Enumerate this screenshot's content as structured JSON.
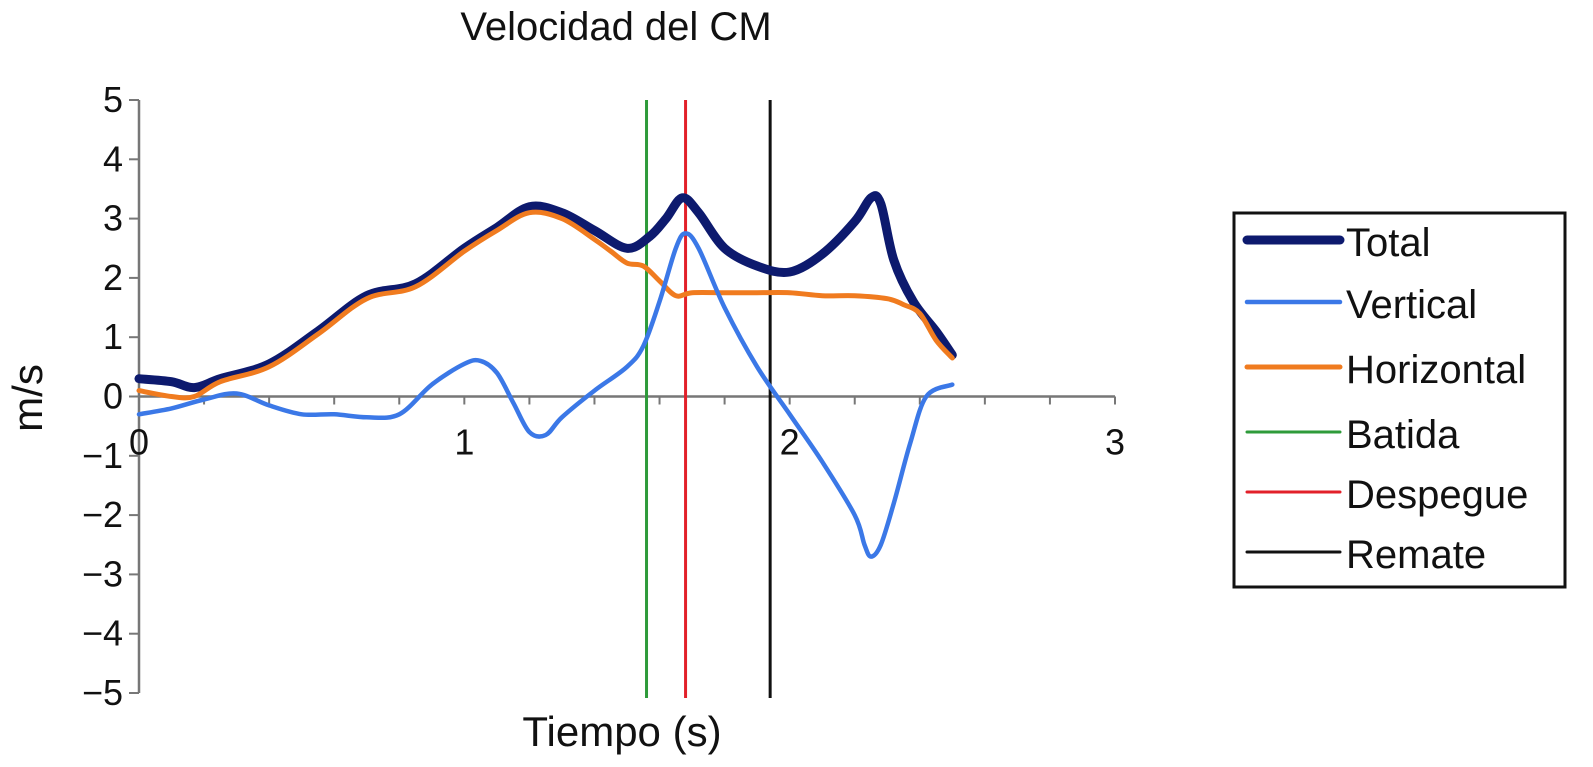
{
  "chart_data": {
    "type": "line",
    "title": "Velocidad del CM",
    "xlabel": "Tiempo (s)",
    "ylabel": "m/s",
    "xlim": [
      0,
      3
    ],
    "ylim": [
      -5,
      5
    ],
    "x_ticks": [
      0,
      1,
      2,
      3
    ],
    "x_tick_labels": [
      "0",
      "1",
      "2",
      "3"
    ],
    "y_ticks": [
      5,
      4,
      3,
      2,
      1,
      0,
      -1,
      -2,
      -3,
      -4,
      -5
    ],
    "y_tick_labels": [
      "5",
      "4",
      "3",
      "2",
      "1",
      "0",
      "−1",
      "−2",
      "−3",
      "−4",
      "−5"
    ],
    "grid": false,
    "legend_position": "right",
    "series": [
      {
        "name": "Total",
        "color": "#0d1a6e",
        "x": [
          0,
          0.1,
          0.17,
          0.25,
          0.4,
          0.55,
          0.7,
          0.85,
          1.0,
          1.1,
          1.2,
          1.3,
          1.4,
          1.5,
          1.57,
          1.62,
          1.67,
          1.72,
          1.8,
          1.9,
          2.0,
          2.1,
          2.2,
          2.25,
          2.28,
          2.32,
          2.38,
          2.45,
          2.5
        ],
        "y": [
          0.3,
          0.25,
          0.15,
          0.3,
          0.55,
          1.1,
          1.7,
          1.9,
          2.5,
          2.85,
          3.2,
          3.1,
          2.8,
          2.5,
          2.7,
          3.0,
          3.35,
          3.1,
          2.5,
          2.2,
          2.1,
          2.4,
          2.95,
          3.35,
          3.25,
          2.3,
          1.6,
          1.1,
          0.7
        ]
      },
      {
        "name": "Vertical",
        "color": "#3b78e7",
        "x": [
          0,
          0.1,
          0.2,
          0.3,
          0.4,
          0.5,
          0.6,
          0.7,
          0.8,
          0.9,
          1.0,
          1.05,
          1.1,
          1.15,
          1.2,
          1.25,
          1.3,
          1.4,
          1.5,
          1.55,
          1.6,
          1.65,
          1.68,
          1.72,
          1.8,
          1.9,
          2.0,
          2.1,
          2.2,
          2.23,
          2.25,
          2.28,
          2.32,
          2.37,
          2.42,
          2.5
        ],
        "y": [
          -0.3,
          -0.2,
          -0.05,
          0.05,
          -0.15,
          -0.3,
          -0.3,
          -0.35,
          -0.3,
          0.2,
          0.55,
          0.6,
          0.4,
          -0.1,
          -0.6,
          -0.65,
          -0.35,
          0.1,
          0.5,
          0.85,
          1.6,
          2.5,
          2.75,
          2.5,
          1.5,
          0.5,
          -0.3,
          -1.1,
          -2.0,
          -2.5,
          -2.7,
          -2.5,
          -1.8,
          -0.8,
          0.0,
          0.2
        ]
      },
      {
        "name": "Horizontal",
        "color": "#f07b1f",
        "x": [
          0,
          0.1,
          0.17,
          0.25,
          0.4,
          0.55,
          0.7,
          0.85,
          1.0,
          1.1,
          1.2,
          1.3,
          1.4,
          1.45,
          1.5,
          1.55,
          1.6,
          1.65,
          1.7,
          1.8,
          1.9,
          2.0,
          2.1,
          2.2,
          2.3,
          2.35,
          2.4,
          2.45,
          2.5
        ],
        "y": [
          0.1,
          0.0,
          0.0,
          0.25,
          0.5,
          1.05,
          1.65,
          1.85,
          2.45,
          2.8,
          3.1,
          3.0,
          2.65,
          2.45,
          2.25,
          2.2,
          1.95,
          1.7,
          1.75,
          1.75,
          1.75,
          1.75,
          1.7,
          1.7,
          1.65,
          1.55,
          1.4,
          0.95,
          0.65
        ]
      }
    ],
    "markers": [
      {
        "name": "Batida",
        "color": "#2e9b3a",
        "x": 1.56
      },
      {
        "name": "Despegue",
        "color": "#e2202a",
        "x": 1.68
      },
      {
        "name": "Remate",
        "color": "#111111",
        "x": 1.94
      }
    ]
  }
}
